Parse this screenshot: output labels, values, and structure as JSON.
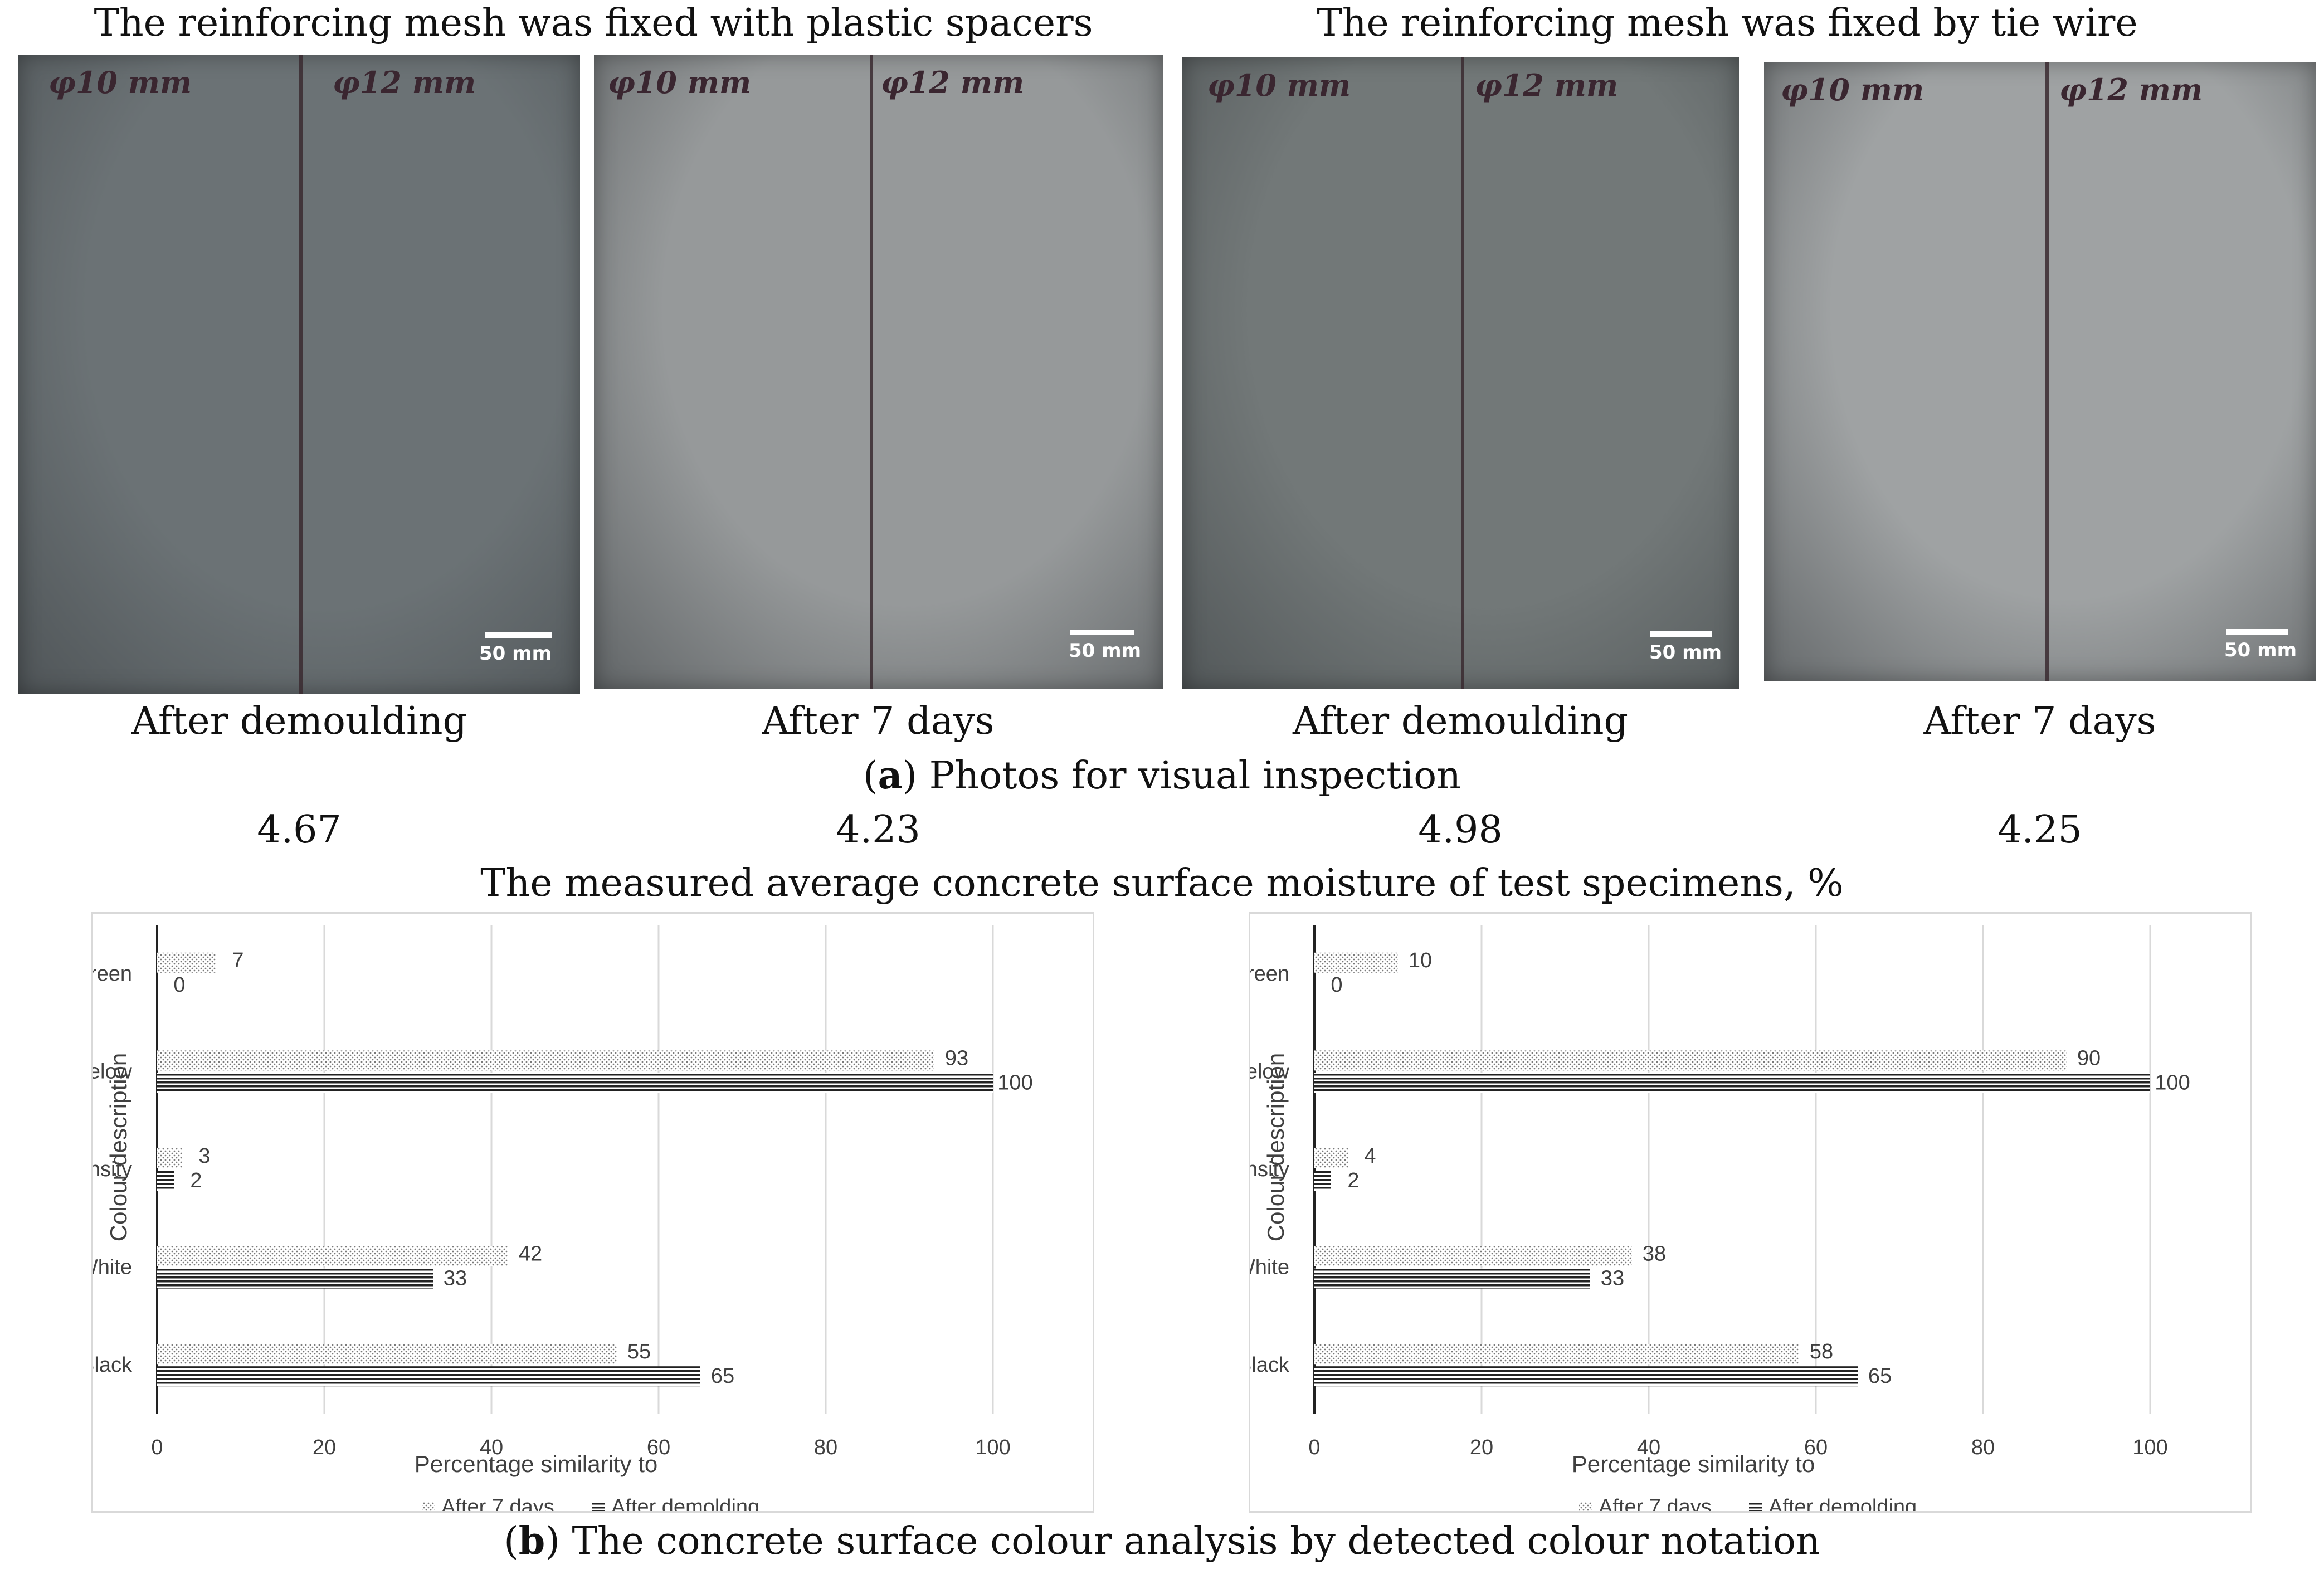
{
  "headers": {
    "left": "The reinforcing mesh was fixed with plastic spacers",
    "right": "The reinforcing mesh was fixed by tie wire"
  },
  "photos": [
    {
      "tone": "#6b7275",
      "mark_left": "φ10 mm",
      "mark_right": "φ12 mm",
      "scale_label": "50 mm",
      "caption": "After demoulding",
      "moisture": "4.67"
    },
    {
      "tone": "#96999a",
      "mark_left": "φ10 mm",
      "mark_right": "φ12 mm",
      "scale_label": "50 mm",
      "caption": "After 7 days",
      "moisture": "4.23"
    },
    {
      "tone": "#727878",
      "mark_left": "φ10 mm",
      "mark_right": "φ12 mm",
      "scale_label": "50 mm",
      "caption": "After demoulding",
      "moisture": "4.98"
    },
    {
      "tone": "#9fa2a3",
      "mark_left": "φ10 mm",
      "mark_right": "φ12 mm",
      "scale_label": "50 mm",
      "caption": "After 7 days",
      "moisture": "4.25"
    }
  ],
  "caption_a": {
    "letter": "a",
    "text": " Photos for visual inspection"
  },
  "moisture_caption": "The measured average concrete surface moisture of test specimens, %",
  "caption_b": {
    "letter": "b",
    "text": " The concrete surface colour analysis by detected colour notation"
  },
  "chart_data": [
    {
      "type": "bar",
      "orientation": "horizontal",
      "categories": [
        "Hue-green",
        "Hue-yelow",
        "Intensity",
        "White",
        "Black"
      ],
      "series": [
        {
          "name": "After 7 days",
          "values": [
            7,
            93,
            3,
            42,
            55
          ]
        },
        {
          "name": "After demolding",
          "values": [
            0,
            100,
            2,
            33,
            65
          ]
        }
      ],
      "xlabel": "Percentage similarity to",
      "ylabel": "Colour description",
      "xlim": [
        0,
        100
      ],
      "xticks": [
        "0",
        "20",
        "40",
        "60",
        "80",
        "100"
      ],
      "grid": true,
      "legend_position": "bottom"
    },
    {
      "type": "bar",
      "orientation": "horizontal",
      "categories": [
        "Hue-green",
        "Hue-yelow",
        "Intensity",
        "White",
        "Black"
      ],
      "series": [
        {
          "name": "After 7 days",
          "values": [
            10,
            90,
            4,
            38,
            58
          ]
        },
        {
          "name": "After demolding",
          "values": [
            0,
            100,
            2,
            33,
            65
          ]
        }
      ],
      "xlabel": "Percentage similarity to",
      "ylabel": "Colour description",
      "xlim": [
        0,
        100
      ],
      "xticks": [
        "0",
        "20",
        "40",
        "60",
        "80",
        "100"
      ],
      "grid": true,
      "legend_position": "bottom"
    }
  ]
}
